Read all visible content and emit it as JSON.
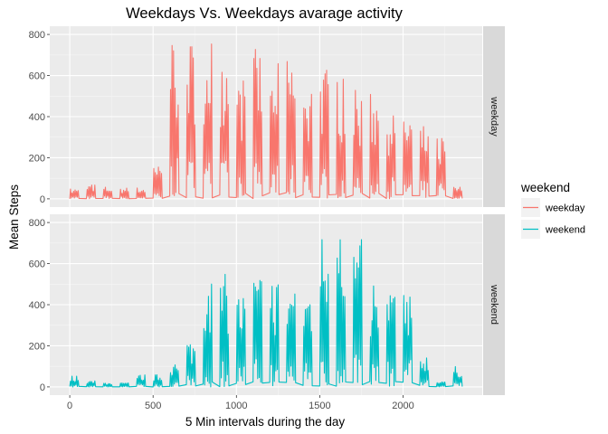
{
  "chart_data": {
    "type": "line",
    "title": "Weekdays Vs. Weekdays avarage activity",
    "xlabel": "5 Min intervals during the day",
    "ylabel": "Mean Steps",
    "xlim": [
      -120,
      2475
    ],
    "ylim": [
      -40,
      840
    ],
    "x_ticks": [
      0,
      500,
      1000,
      1500,
      2000
    ],
    "y_ticks": [
      0,
      200,
      400,
      600,
      800
    ],
    "facet_strip": "right",
    "grid": true,
    "legend": {
      "title": "weekend",
      "position": "right",
      "items": [
        "weekday",
        "weekend"
      ]
    },
    "series": [
      {
        "name": "weekday",
        "panel": "weekday",
        "color": "#F8766D",
        "blocks": [
          {
            "x0": 0,
            "x1": 55,
            "max": 50
          },
          {
            "x0": 100,
            "x1": 155,
            "max": 70
          },
          {
            "x0": 200,
            "x1": 255,
            "max": 60
          },
          {
            "x0": 300,
            "x1": 355,
            "max": 55
          },
          {
            "x0": 400,
            "x1": 455,
            "max": 55
          },
          {
            "x0": 500,
            "x1": 555,
            "max": 160
          },
          {
            "x0": 600,
            "x1": 655,
            "max": 800
          },
          {
            "x0": 700,
            "x1": 755,
            "max": 790
          },
          {
            "x0": 800,
            "x1": 855,
            "max": 800
          },
          {
            "x0": 900,
            "x1": 955,
            "max": 770
          },
          {
            "x0": 1000,
            "x1": 1055,
            "max": 600
          },
          {
            "x0": 1100,
            "x1": 1155,
            "max": 730
          },
          {
            "x0": 1200,
            "x1": 1255,
            "max": 660
          },
          {
            "x0": 1300,
            "x1": 1355,
            "max": 700
          },
          {
            "x0": 1400,
            "x1": 1455,
            "max": 600
          },
          {
            "x0": 1500,
            "x1": 1555,
            "max": 640
          },
          {
            "x0": 1600,
            "x1": 1655,
            "max": 600
          },
          {
            "x0": 1700,
            "x1": 1755,
            "max": 530
          },
          {
            "x0": 1800,
            "x1": 1855,
            "max": 530
          },
          {
            "x0": 1900,
            "x1": 1955,
            "max": 460
          },
          {
            "x0": 2000,
            "x1": 2055,
            "max": 420
          },
          {
            "x0": 2100,
            "x1": 2155,
            "max": 360
          },
          {
            "x0": 2200,
            "x1": 2255,
            "max": 330
          },
          {
            "x0": 2300,
            "x1": 2355,
            "max": 60
          }
        ]
      },
      {
        "name": "weekend",
        "panel": "weekend",
        "color": "#00BFC4",
        "blocks": [
          {
            "x0": 0,
            "x1": 55,
            "max": 55
          },
          {
            "x0": 100,
            "x1": 155,
            "max": 30
          },
          {
            "x0": 200,
            "x1": 255,
            "max": 20
          },
          {
            "x0": 300,
            "x1": 355,
            "max": 20
          },
          {
            "x0": 400,
            "x1": 455,
            "max": 60
          },
          {
            "x0": 500,
            "x1": 555,
            "max": 60
          },
          {
            "x0": 600,
            "x1": 655,
            "max": 120
          },
          {
            "x0": 700,
            "x1": 755,
            "max": 230
          },
          {
            "x0": 800,
            "x1": 855,
            "max": 550
          },
          {
            "x0": 900,
            "x1": 955,
            "max": 550
          },
          {
            "x0": 1000,
            "x1": 1055,
            "max": 460
          },
          {
            "x0": 1100,
            "x1": 1155,
            "max": 560
          },
          {
            "x0": 1200,
            "x1": 1255,
            "max": 540
          },
          {
            "x0": 1300,
            "x1": 1355,
            "max": 540
          },
          {
            "x0": 1400,
            "x1": 1455,
            "max": 500
          },
          {
            "x0": 1500,
            "x1": 1555,
            "max": 770
          },
          {
            "x0": 1600,
            "x1": 1655,
            "max": 785
          },
          {
            "x0": 1700,
            "x1": 1755,
            "max": 730
          },
          {
            "x0": 1800,
            "x1": 1855,
            "max": 520
          },
          {
            "x0": 1900,
            "x1": 1955,
            "max": 520
          },
          {
            "x0": 2000,
            "x1": 2055,
            "max": 540
          },
          {
            "x0": 2100,
            "x1": 2155,
            "max": 160
          },
          {
            "x0": 2200,
            "x1": 2255,
            "max": 30
          },
          {
            "x0": 2300,
            "x1": 2355,
            "max": 100
          }
        ]
      }
    ]
  }
}
